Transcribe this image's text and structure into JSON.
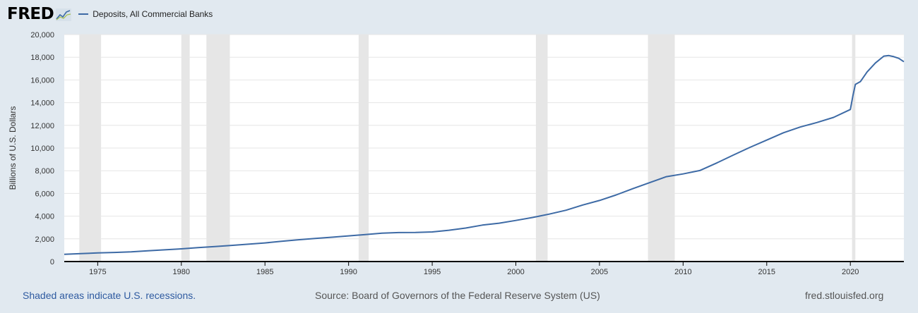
{
  "header": {
    "logo_text": "FRED",
    "logo_icon": "trend-chart-icon",
    "series_label": "Deposits, All Commercial Banks"
  },
  "colors": {
    "background": "#e1e9f0",
    "plot_background": "#ffffff",
    "series_line": "#3d6aa5",
    "recession_shading": "#e6e6e6",
    "gridline": "#e6e6e6"
  },
  "chart_data": {
    "type": "line",
    "title": "",
    "xlabel": "",
    "ylabel": "Billions of U.S. Dollars",
    "xlim": [
      1973.0,
      2023.2
    ],
    "ylim": [
      0,
      20000
    ],
    "yticks": [
      0,
      2000,
      4000,
      6000,
      8000,
      10000,
      12000,
      14000,
      16000,
      18000,
      20000
    ],
    "ytick_labels": [
      "0",
      "2,000",
      "4,000",
      "6,000",
      "8,000",
      "10,000",
      "12,000",
      "14,000",
      "16,000",
      "18,000",
      "20,000"
    ],
    "xticks": [
      1975,
      1980,
      1985,
      1990,
      1995,
      2000,
      2005,
      2010,
      2015,
      2020
    ],
    "xtick_labels": [
      "1975",
      "1980",
      "1985",
      "1990",
      "1995",
      "2000",
      "2005",
      "2010",
      "2015",
      "2020"
    ],
    "grid": true,
    "legend_position": "top-left",
    "recessions": [
      [
        1973.9,
        1975.2
      ],
      [
        1980.0,
        1980.5
      ],
      [
        1981.5,
        1982.9
      ],
      [
        1990.6,
        1991.2
      ],
      [
        2001.2,
        2001.9
      ],
      [
        2007.9,
        2009.5
      ],
      [
        2020.1,
        2020.3
      ]
    ],
    "series": [
      {
        "name": "Deposits, All Commercial Banks",
        "x": [
          1973.0,
          1974.0,
          1975.0,
          1976.0,
          1977.0,
          1978.0,
          1979.0,
          1980.0,
          1981.0,
          1982.0,
          1983.0,
          1984.0,
          1985.0,
          1986.0,
          1987.0,
          1988.0,
          1989.0,
          1990.0,
          1991.0,
          1992.0,
          1993.0,
          1994.0,
          1995.0,
          1996.0,
          1997.0,
          1998.0,
          1999.0,
          2000.0,
          2001.0,
          2002.0,
          2003.0,
          2004.0,
          2005.0,
          2006.0,
          2007.0,
          2008.0,
          2009.0,
          2010.0,
          2011.0,
          2012.0,
          2013.0,
          2014.0,
          2015.0,
          2016.0,
          2017.0,
          2018.0,
          2019.0,
          2020.0,
          2020.15,
          2020.3,
          2020.6,
          2021.0,
          2021.5,
          2022.0,
          2022.3,
          2022.6,
          2022.9,
          2023.2
        ],
        "y": [
          640,
          700,
          760,
          800,
          860,
          950,
          1030,
          1120,
          1230,
          1320,
          1420,
          1530,
          1640,
          1780,
          1920,
          2030,
          2140,
          2260,
          2380,
          2500,
          2550,
          2560,
          2610,
          2760,
          2950,
          3210,
          3380,
          3620,
          3880,
          4180,
          4520,
          4980,
          5380,
          5870,
          6420,
          6950,
          7480,
          7720,
          8020,
          8680,
          9380,
          10060,
          10700,
          11350,
          11850,
          12250,
          12700,
          13400,
          14600,
          15600,
          15850,
          16700,
          17500,
          18100,
          18150,
          18050,
          17900,
          17600
        ]
      }
    ]
  },
  "footer": {
    "recession_note": "Shaded areas indicate U.S. recessions.",
    "source": "Source: Board of Governors of the Federal Reserve System (US)",
    "site": "fred.stlouisfed.org"
  }
}
